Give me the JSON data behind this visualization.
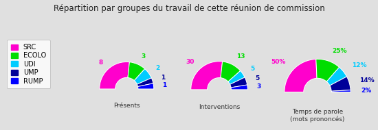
{
  "title": "Répartition par groupes du travail de cette réunion de commission",
  "background_color": "#e0e0e0",
  "legend_labels": [
    "SRC",
    "ECOLO",
    "UDI",
    "UMP",
    "RUMP"
  ],
  "colors": [
    "#ff00cc",
    "#00dd00",
    "#00ccff",
    "#000099",
    "#0000ff"
  ],
  "charts": [
    {
      "label": "Présents",
      "values": [
        8,
        3,
        2,
        1,
        1
      ],
      "annotations": [
        "8",
        "3",
        "2",
        "1",
        "1"
      ]
    },
    {
      "label": "Interventions",
      "values": [
        30,
        13,
        5,
        5,
        3
      ],
      "annotations": [
        "30",
        "13",
        "5",
        "5",
        "3"
      ]
    },
    {
      "label": "Temps de parole\n(mots prononcés)",
      "values": [
        50,
        25,
        12,
        14,
        2
      ],
      "annotations": [
        "50%",
        "25%",
        "12%",
        "14%",
        "2%"
      ]
    }
  ],
  "annotation_colors": [
    "#ff00cc",
    "#00dd00",
    "#00ccff",
    "#000099",
    "#0000ff"
  ]
}
